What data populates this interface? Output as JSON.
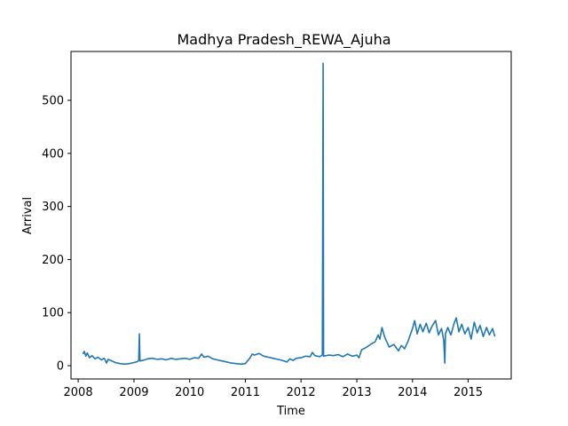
{
  "chart_data": {
    "type": "line",
    "title": "Madhya Pradesh_REWA_Ajuha",
    "xlabel": "Time",
    "ylabel": "Arrival",
    "xlim": [
      "2007-11-15",
      "2015-10-10"
    ],
    "ylim": [
      -25,
      592
    ],
    "x_ticks": [
      "2008",
      "2009",
      "2010",
      "2011",
      "2012",
      "2013",
      "2014",
      "2015"
    ],
    "x_tick_dates": [
      "2008-01-01",
      "2009-01-01",
      "2010-01-01",
      "2011-01-01",
      "2012-01-01",
      "2013-01-01",
      "2014-01-01",
      "2015-01-01"
    ],
    "y_ticks": [
      "0",
      "100",
      "200",
      "300",
      "400",
      "500"
    ],
    "y_tick_values": [
      0,
      100,
      200,
      300,
      400,
      500
    ],
    "grid": false,
    "legend": "none",
    "series": [
      {
        "color": "#1f77b4",
        "points": [
          [
            "2008-02-01",
            22
          ],
          [
            "2008-02-10",
            27
          ],
          [
            "2008-02-20",
            18
          ],
          [
            "2008-03-01",
            24
          ],
          [
            "2008-03-15",
            15
          ],
          [
            "2008-04-01",
            19
          ],
          [
            "2008-04-20",
            13
          ],
          [
            "2008-05-10",
            16
          ],
          [
            "2008-06-01",
            11
          ],
          [
            "2008-06-20",
            14
          ],
          [
            "2008-07-05",
            5
          ],
          [
            "2008-07-15",
            12
          ],
          [
            "2008-08-01",
            10
          ],
          [
            "2008-09-01",
            6
          ],
          [
            "2008-10-01",
            4
          ],
          [
            "2008-11-01",
            3
          ],
          [
            "2008-12-01",
            4
          ],
          [
            "2009-01-01",
            6
          ],
          [
            "2009-01-25",
            8
          ],
          [
            "2009-02-01",
            10
          ],
          [
            "2009-02-05",
            60
          ],
          [
            "2009-02-09",
            9
          ],
          [
            "2009-03-01",
            10
          ],
          [
            "2009-04-01",
            13
          ],
          [
            "2009-05-01",
            14
          ],
          [
            "2009-06-01",
            12
          ],
          [
            "2009-07-01",
            13
          ],
          [
            "2009-08-01",
            11
          ],
          [
            "2009-09-01",
            14
          ],
          [
            "2009-10-01",
            12
          ],
          [
            "2009-11-01",
            13
          ],
          [
            "2009-12-01",
            14
          ],
          [
            "2010-01-01",
            12
          ],
          [
            "2010-02-01",
            15
          ],
          [
            "2010-03-01",
            14
          ],
          [
            "2010-03-20",
            22
          ],
          [
            "2010-04-05",
            16
          ],
          [
            "2010-05-01",
            18
          ],
          [
            "2010-06-01",
            13
          ],
          [
            "2010-07-01",
            11
          ],
          [
            "2010-08-01",
            9
          ],
          [
            "2010-09-01",
            7
          ],
          [
            "2010-10-01",
            5
          ],
          [
            "2010-11-01",
            4
          ],
          [
            "2010-12-01",
            3
          ],
          [
            "2011-01-01",
            4
          ],
          [
            "2011-02-01",
            15
          ],
          [
            "2011-02-15",
            22
          ],
          [
            "2011-03-01",
            20
          ],
          [
            "2011-04-01",
            23
          ],
          [
            "2011-05-01",
            18
          ],
          [
            "2011-06-01",
            16
          ],
          [
            "2011-07-01",
            14
          ],
          [
            "2011-08-01",
            12
          ],
          [
            "2011-09-01",
            10
          ],
          [
            "2011-10-01",
            7
          ],
          [
            "2011-10-20",
            13
          ],
          [
            "2011-11-10",
            10
          ],
          [
            "2011-12-01",
            14
          ],
          [
            "2012-01-01",
            15
          ],
          [
            "2012-02-01",
            18
          ],
          [
            "2012-03-01",
            17
          ],
          [
            "2012-03-15",
            25
          ],
          [
            "2012-04-01",
            19
          ],
          [
            "2012-05-01",
            17
          ],
          [
            "2012-05-20",
            20
          ],
          [
            "2012-05-25",
            570
          ],
          [
            "2012-05-28",
            18
          ],
          [
            "2012-07-01",
            20
          ],
          [
            "2012-08-01",
            19
          ],
          [
            "2012-09-01",
            21
          ],
          [
            "2012-10-01",
            17
          ],
          [
            "2012-11-01",
            22
          ],
          [
            "2012-12-01",
            18
          ],
          [
            "2013-01-01",
            20
          ],
          [
            "2013-01-15",
            15
          ],
          [
            "2013-02-01",
            30
          ],
          [
            "2013-03-01",
            34
          ],
          [
            "2013-04-01",
            40
          ],
          [
            "2013-05-01",
            45
          ],
          [
            "2013-05-20",
            58
          ],
          [
            "2013-06-01",
            50
          ],
          [
            "2013-06-15",
            72
          ],
          [
            "2013-07-01",
            55
          ],
          [
            "2013-08-01",
            35
          ],
          [
            "2013-09-01",
            40
          ],
          [
            "2013-10-01",
            28
          ],
          [
            "2013-10-20",
            38
          ],
          [
            "2013-11-10",
            32
          ],
          [
            "2013-12-01",
            45
          ],
          [
            "2014-01-01",
            70
          ],
          [
            "2014-01-15",
            85
          ],
          [
            "2014-02-01",
            60
          ],
          [
            "2014-02-20",
            78
          ],
          [
            "2014-03-10",
            64
          ],
          [
            "2014-04-01",
            80
          ],
          [
            "2014-04-20",
            62
          ],
          [
            "2014-05-10",
            75
          ],
          [
            "2014-06-01",
            85
          ],
          [
            "2014-06-20",
            58
          ],
          [
            "2014-07-10",
            70
          ],
          [
            "2014-07-25",
            48
          ],
          [
            "2014-08-01",
            5
          ],
          [
            "2014-08-05",
            60
          ],
          [
            "2014-08-20",
            72
          ],
          [
            "2014-09-10",
            58
          ],
          [
            "2014-10-01",
            80
          ],
          [
            "2014-10-15",
            90
          ],
          [
            "2014-11-01",
            64
          ],
          [
            "2014-11-20",
            78
          ],
          [
            "2014-12-10",
            60
          ],
          [
            "2015-01-01",
            72
          ],
          [
            "2015-01-20",
            50
          ],
          [
            "2015-02-10",
            82
          ],
          [
            "2015-03-01",
            62
          ],
          [
            "2015-03-20",
            76
          ],
          [
            "2015-04-10",
            55
          ],
          [
            "2015-05-01",
            72
          ],
          [
            "2015-05-20",
            58
          ],
          [
            "2015-06-10",
            70
          ],
          [
            "2015-06-25",
            55
          ]
        ]
      }
    ]
  }
}
